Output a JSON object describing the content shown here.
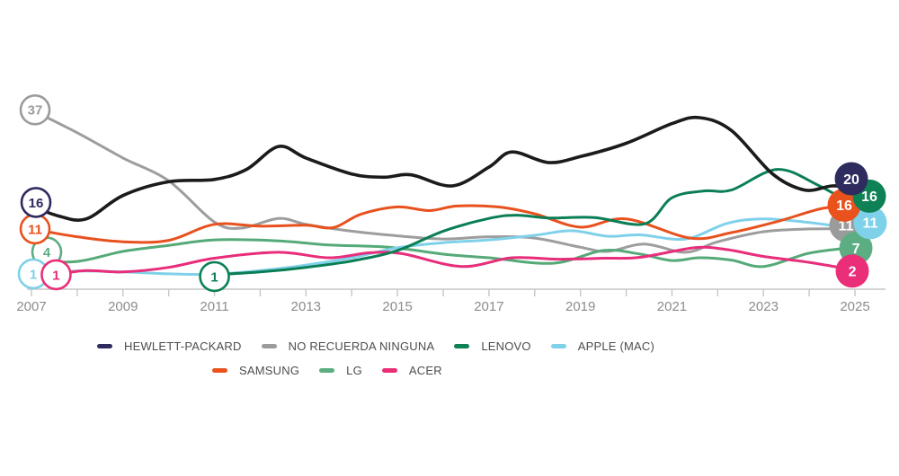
{
  "chart_data": {
    "type": "line",
    "title": "",
    "x_axis": {
      "range": [
        2007,
        2025
      ],
      "tick_every": 1,
      "labels": [
        "2007",
        "2009",
        "2011",
        "2013",
        "2015",
        "2017",
        "2019",
        "2021",
        "2023",
        "2025"
      ],
      "label_years": [
        2007,
        2009,
        2011,
        2013,
        2015,
        2017,
        2019,
        2021,
        2023,
        2025
      ]
    },
    "y_axis": {
      "min": 0,
      "max": 40,
      "visible": false,
      "grid": false
    },
    "colors": {
      "axis": "#c6c6c6",
      "axis_text": "#8c8c8c",
      "legend_text": "#4d4d4d",
      "background": "#ffffff"
    },
    "series": [
      {
        "id": "no-recuerda",
        "name": "NO RECUERDA NINGUNA",
        "line_color": "#9d9d9d",
        "accent_color": "#9b9b9b",
        "start_label": "37",
        "end_label": "11",
        "points": [
          [
            2007,
            37
          ],
          [
            2008,
            32
          ],
          [
            2009,
            26.5
          ],
          [
            2010,
            21.5
          ],
          [
            2011,
            12.5
          ],
          [
            2011.6,
            11.2
          ],
          [
            2012.4,
            13.3
          ],
          [
            2013,
            12
          ],
          [
            2014,
            10.5
          ],
          [
            2015,
            9.5
          ],
          [
            2016,
            8.8
          ],
          [
            2017,
            9.3
          ],
          [
            2018,
            9
          ],
          [
            2019,
            7
          ],
          [
            2019.6,
            6.1
          ],
          [
            2020.4,
            7.7
          ],
          [
            2021.3,
            5.9
          ],
          [
            2022,
            8.2
          ],
          [
            2023,
            10.4
          ],
          [
            2024,
            11
          ],
          [
            2025,
            11
          ]
        ]
      },
      {
        "id": "lg",
        "name": "LG",
        "line_color": "#55aa78",
        "accent_color": "#5cad82",
        "start_label": "4",
        "end_label": "7",
        "points": [
          [
            2007,
            4
          ],
          [
            2008,
            3.9
          ],
          [
            2009,
            6.1
          ],
          [
            2010,
            7.4
          ],
          [
            2011,
            8.6
          ],
          [
            2012.4,
            8.4
          ],
          [
            2013.5,
            7.5
          ],
          [
            2014.8,
            7
          ],
          [
            2016.1,
            5.4
          ],
          [
            2017,
            4.7
          ],
          [
            2018.4,
            3.5
          ],
          [
            2019.5,
            6.3
          ],
          [
            2020.3,
            5.5
          ],
          [
            2021,
            4.1
          ],
          [
            2021.6,
            4.7
          ],
          [
            2022.3,
            4.2
          ],
          [
            2023,
            2.8
          ],
          [
            2024,
            5.7
          ],
          [
            2025,
            7
          ]
        ]
      },
      {
        "id": "apple",
        "name": "APPLE (MAC)",
        "line_color": "#7fd1e9",
        "accent_color": "#7ed1e8",
        "start_label": "1",
        "end_label": "11",
        "points": [
          [
            2007,
            1
          ],
          [
            2008,
            1.8
          ],
          [
            2009,
            1.6
          ],
          [
            2010,
            1.2
          ],
          [
            2011,
            1.1
          ],
          [
            2012,
            1.9
          ],
          [
            2013,
            3.1
          ],
          [
            2014,
            4.7
          ],
          [
            2015,
            6.9
          ],
          [
            2016,
            8
          ],
          [
            2017,
            8.6
          ],
          [
            2018,
            9.6
          ],
          [
            2018.8,
            10.6
          ],
          [
            2019.6,
            9.4
          ],
          [
            2020.3,
            9.7
          ],
          [
            2021.3,
            8.8
          ],
          [
            2022.2,
            12.2
          ],
          [
            2023,
            13.2
          ],
          [
            2024,
            12.4
          ],
          [
            2025,
            11
          ]
        ]
      },
      {
        "id": "acer",
        "name": "ACER",
        "line_color": "#e82d7a",
        "accent_color": "#ea2e78",
        "start_label": "1",
        "end_label": "2",
        "points": [
          [
            2007.5,
            1
          ],
          [
            2008.2,
            1.9
          ],
          [
            2009,
            1.6
          ],
          [
            2010,
            2.6
          ],
          [
            2011,
            4.6
          ],
          [
            2012.4,
            5.9
          ],
          [
            2013.5,
            4.7
          ],
          [
            2014.4,
            5.8
          ],
          [
            2015.1,
            5.6
          ],
          [
            2016.4,
            2.8
          ],
          [
            2017.5,
            4.7
          ],
          [
            2018.5,
            4.4
          ],
          [
            2019.5,
            4.6
          ],
          [
            2020.3,
            4.8
          ],
          [
            2021.5,
            6.9
          ],
          [
            2022.2,
            6.5
          ],
          [
            2023,
            5
          ],
          [
            2024,
            3.7
          ],
          [
            2025,
            2
          ]
        ]
      },
      {
        "id": "samsung",
        "name": "SAMSUNG",
        "line_color": "#e8511e",
        "accent_color": "#e9521d",
        "start_label": "11",
        "end_label": "16",
        "points": [
          [
            2007,
            11
          ],
          [
            2008,
            9.3
          ],
          [
            2009,
            8.2
          ],
          [
            2010,
            8.5
          ],
          [
            2011,
            12
          ],
          [
            2012,
            11.6
          ],
          [
            2013,
            11.8
          ],
          [
            2013.6,
            11.3
          ],
          [
            2014.2,
            14.2
          ],
          [
            2015,
            15.8
          ],
          [
            2015.7,
            15
          ],
          [
            2016.3,
            16
          ],
          [
            2017.2,
            15.8
          ],
          [
            2018,
            14.3
          ],
          [
            2019,
            11.4
          ],
          [
            2020,
            13.2
          ],
          [
            2021.4,
            9
          ],
          [
            2022.3,
            10.2
          ],
          [
            2023.3,
            12.6
          ],
          [
            2024.3,
            15.5
          ],
          [
            2025,
            16
          ]
        ]
      },
      {
        "id": "lenovo",
        "name": "LENOVO",
        "line_color": "#0a7e54",
        "accent_color": "#0e8155",
        "start_label": "1",
        "end_label": "16",
        "points": [
          [
            2011,
            1
          ],
          [
            2012,
            1.6
          ],
          [
            2013,
            2.6
          ],
          [
            2014,
            4
          ],
          [
            2015,
            6.3
          ],
          [
            2016,
            10.5
          ],
          [
            2017,
            13.3
          ],
          [
            2017.6,
            14
          ],
          [
            2018.3,
            13.4
          ],
          [
            2019.3,
            13.5
          ],
          [
            2020.4,
            12.1
          ],
          [
            2021,
            17.8
          ],
          [
            2021.7,
            19.3
          ],
          [
            2022.3,
            19.5
          ],
          [
            2023.3,
            24
          ],
          [
            2024.2,
            20.5
          ],
          [
            2025,
            16
          ]
        ]
      },
      {
        "id": "hewlett-packard",
        "name": "HEWLETT-PACKARD",
        "line_color": "#1b1b1b",
        "accent_color": "#2e2b5f",
        "start_label": "16",
        "end_label": "20",
        "points": [
          [
            2007,
            16
          ],
          [
            2007.6,
            13.8
          ],
          [
            2008.2,
            13.2
          ],
          [
            2009,
            18.3
          ],
          [
            2010,
            21.3
          ],
          [
            2011,
            21.8
          ],
          [
            2011.7,
            24
          ],
          [
            2012.4,
            29
          ],
          [
            2013,
            26.5
          ],
          [
            2014,
            23
          ],
          [
            2014.7,
            22.3
          ],
          [
            2015.3,
            22.8
          ],
          [
            2016.2,
            20.4
          ],
          [
            2017,
            24.5
          ],
          [
            2017.5,
            27.8
          ],
          [
            2018.3,
            25.5
          ],
          [
            2019,
            26.8
          ],
          [
            2020,
            29.7
          ],
          [
            2021,
            34
          ],
          [
            2021.6,
            35.3
          ],
          [
            2022.3,
            32.5
          ],
          [
            2023.2,
            23
          ],
          [
            2023.9,
            19.5
          ],
          [
            2024.5,
            20.4
          ],
          [
            2025,
            20
          ]
        ]
      }
    ],
    "legend": {
      "rows": [
        [
          "hewlett-packard",
          "no-recuerda",
          "lenovo",
          "apple"
        ],
        [
          "samsung",
          "lg",
          "acer"
        ]
      ]
    }
  }
}
